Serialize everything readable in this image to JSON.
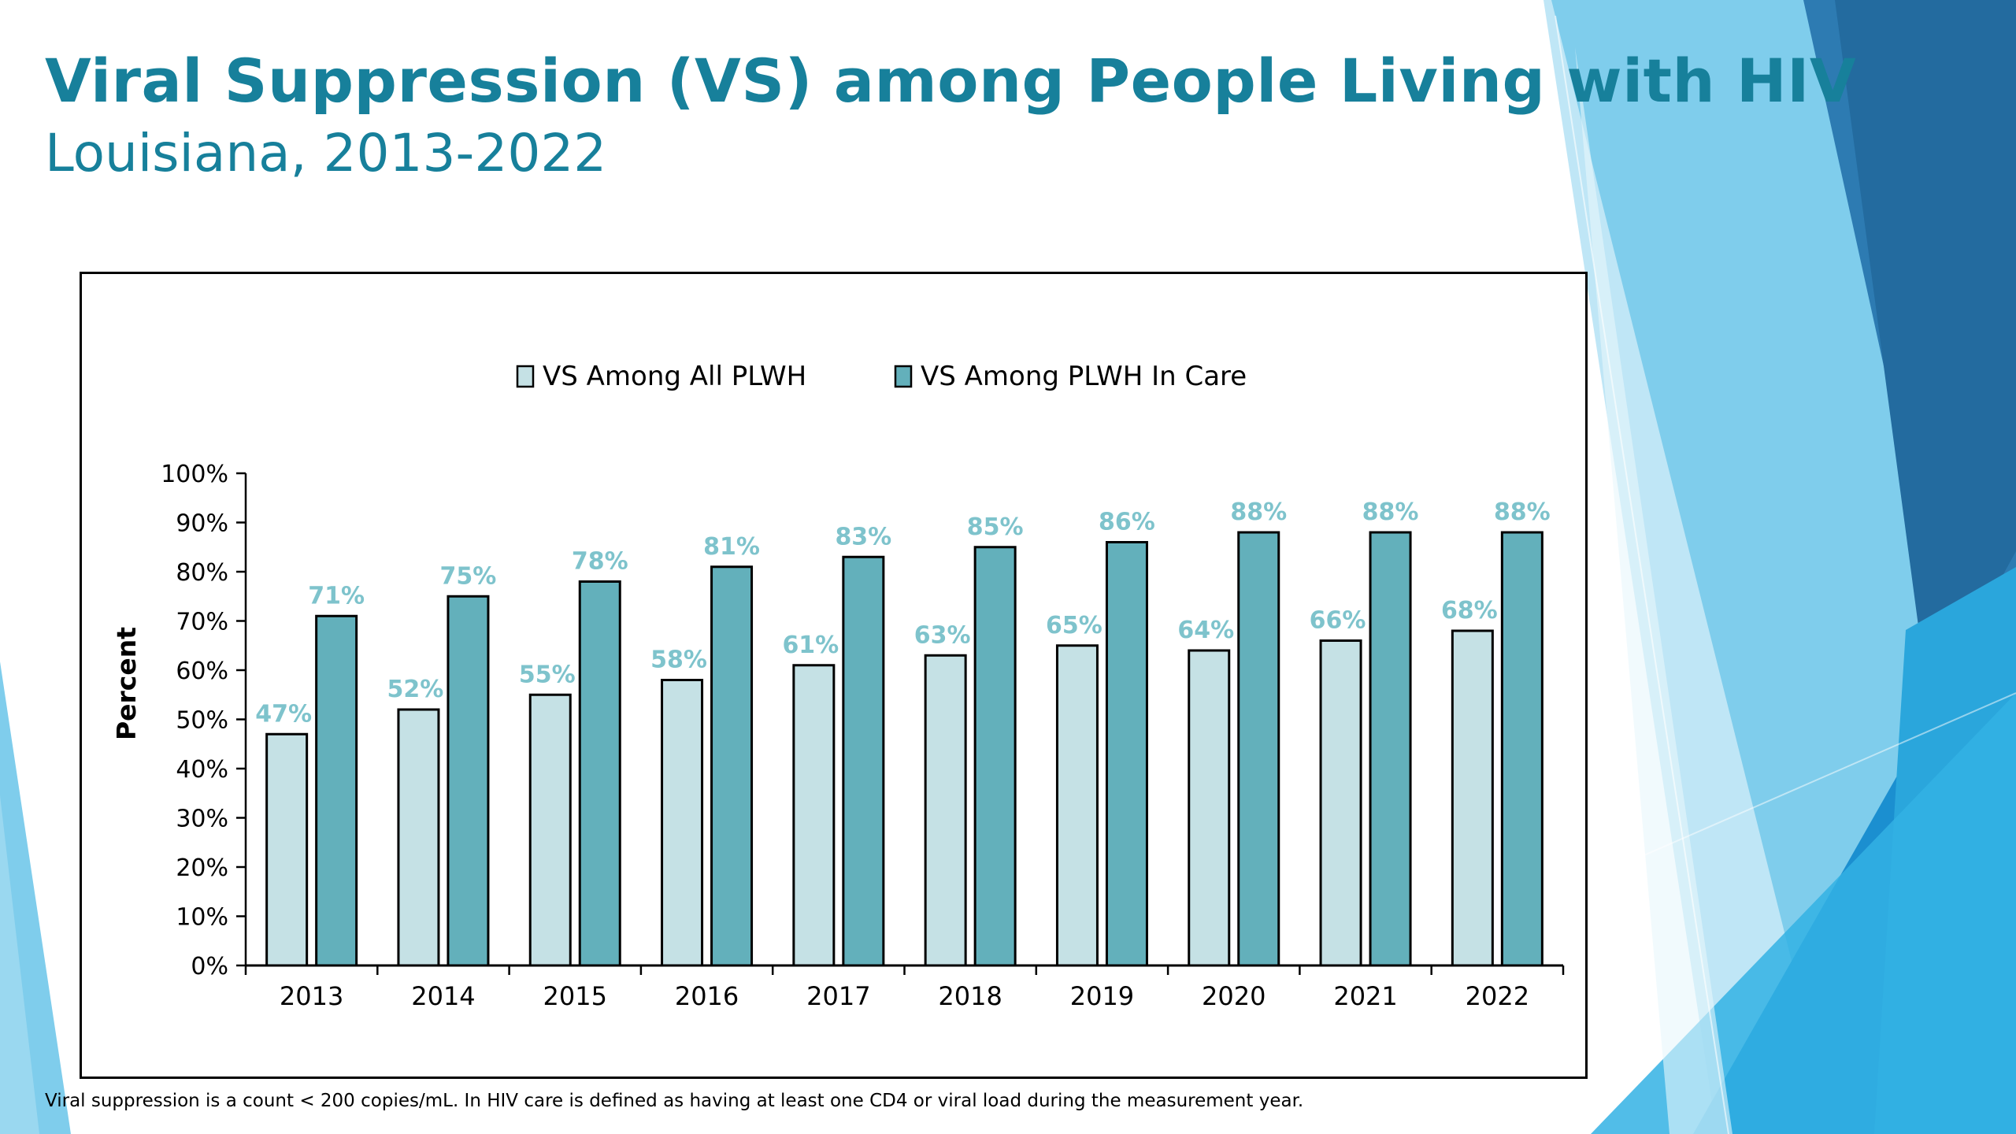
{
  "slide": {
    "title": "Viral Suppression (VS) among People Living with HIV",
    "subtitle": "Louisiana, 2013-2022",
    "footnote": "Viral suppression is a count < 200 copies/mL.  In HIV care is defined as having at least one CD4 or viral load during the measurement year."
  },
  "colors": {
    "title": "#17809b",
    "series_all": "#c5e1e5",
    "series_care": "#63b0bb",
    "data_label": "#7ec3cc"
  },
  "chart_data": {
    "type": "bar",
    "categories": [
      "2013",
      "2014",
      "2015",
      "2016",
      "2017",
      "2018",
      "2019",
      "2020",
      "2021",
      "2022"
    ],
    "series": [
      {
        "name": "VS Among All PLWH",
        "values": [
          47,
          52,
          55,
          58,
          61,
          63,
          65,
          64,
          66,
          68
        ]
      },
      {
        "name": "VS Among PLWH In Care",
        "values": [
          71,
          75,
          78,
          81,
          83,
          85,
          86,
          88,
          88,
          88
        ]
      }
    ],
    "data_labels": [
      [
        "47%",
        "52%",
        "55%",
        "58%",
        "61%",
        "63%",
        "65%",
        "64%",
        "66%",
        "68%"
      ],
      [
        "71%",
        "75%",
        "78%",
        "81%",
        "83%",
        "85%",
        "86%",
        "88%",
        "88%",
        "88%"
      ]
    ],
    "y_ticks": [
      "0%",
      "10%",
      "20%",
      "30%",
      "40%",
      "50%",
      "60%",
      "70%",
      "80%",
      "90%",
      "100%"
    ],
    "ylabel": "Percent",
    "xlabel": "",
    "ylim": [
      0,
      100
    ],
    "grid": false,
    "legend_position": "top-center"
  }
}
